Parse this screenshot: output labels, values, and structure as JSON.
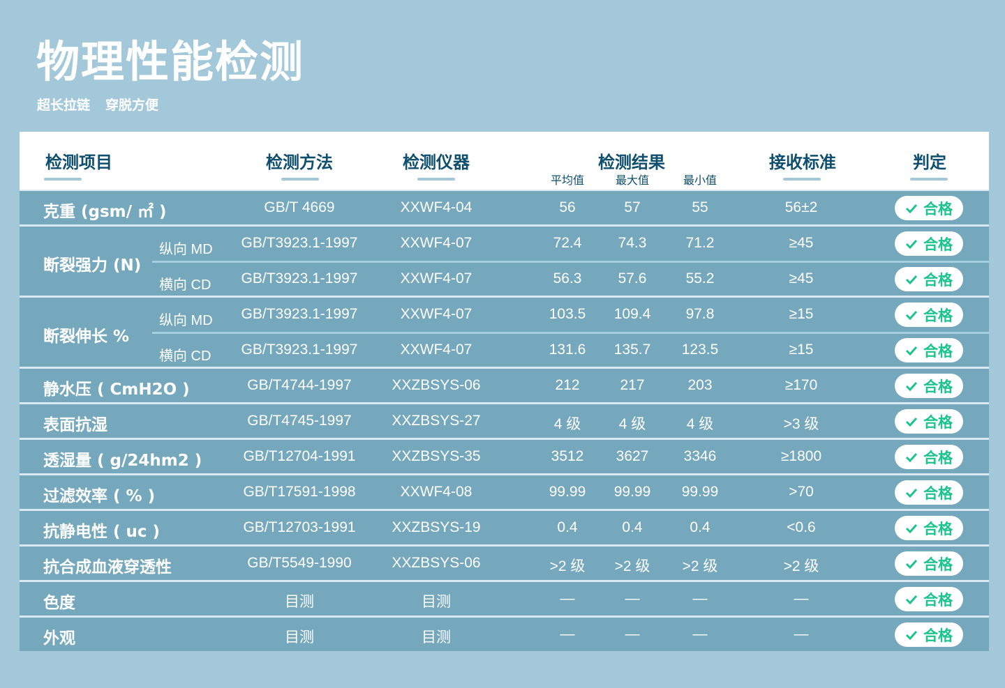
{
  "title": "物理性能检测",
  "subtitle": [
    "超长拉链",
    "穿脱方便"
  ],
  "header": {
    "item": "检测项目",
    "method": "检测方法",
    "instrument": "检测仪器",
    "result": "检测结果",
    "avg": "平均值",
    "max": "最大值",
    "min": "最小值",
    "standard": "接收标准",
    "verdict": "判定"
  },
  "colors": {
    "background": "#a3c8d9",
    "row": "#75a8bd",
    "header_text": "#0e4e6e",
    "pass": "#1bc48c"
  },
  "groups": [
    {
      "item": "克重 (gsm/ ㎡ )",
      "rows": [
        {
          "dir": "",
          "method": "GB/T 4669",
          "instrument": "XXWF4-04",
          "avg": "56",
          "max": "57",
          "min": "55",
          "standard": "56±2",
          "verdict": "合格"
        }
      ]
    },
    {
      "item": "断裂强力 (N)",
      "rows": [
        {
          "dir": "纵向 MD",
          "method": "GB/T3923.1-1997",
          "instrument": "XXWF4-07",
          "avg": "72.4",
          "max": "74.3",
          "min": "71.2",
          "standard": "≥45",
          "verdict": "合格"
        },
        {
          "dir": "横向 CD",
          "method": "GB/T3923.1-1997",
          "instrument": "XXWF4-07",
          "avg": "56.3",
          "max": "57.6",
          "min": "55.2",
          "standard": "≥45",
          "verdict": "合格"
        }
      ]
    },
    {
      "item": "断裂伸长 %",
      "rows": [
        {
          "dir": "纵向 MD",
          "method": "GB/T3923.1-1997",
          "instrument": "XXWF4-07",
          "avg": "103.5",
          "max": "109.4",
          "min": "97.8",
          "standard": "≥15",
          "verdict": "合格"
        },
        {
          "dir": "横向 CD",
          "method": "GB/T3923.1-1997",
          "instrument": "XXWF4-07",
          "avg": "131.6",
          "max": "135.7",
          "min": "123.5",
          "standard": "≥15",
          "verdict": "合格"
        }
      ]
    },
    {
      "item": "静水压 ( CmH2O )",
      "rows": [
        {
          "dir": "",
          "method": "GB/T4744-1997",
          "instrument": "XXZBSYS-06",
          "avg": "212",
          "max": "217",
          "min": "203",
          "standard": "≥170",
          "verdict": "合格"
        }
      ]
    },
    {
      "item": "表面抗湿",
      "rows": [
        {
          "dir": "",
          "method": "GB/T4745-1997",
          "instrument": "XXZBSYS-27",
          "avg": "4 级",
          "max": "4 级",
          "min": "4 级",
          "standard": ">3 级",
          "verdict": "合格"
        }
      ]
    },
    {
      "item": "透湿量 ( g/24hm2 )",
      "rows": [
        {
          "dir": "",
          "method": "GB/T12704-1991",
          "instrument": "XXZBSYS-35",
          "avg": "3512",
          "max": "3627",
          "min": "3346",
          "standard": "≥1800",
          "verdict": "合格"
        }
      ]
    },
    {
      "item": "过滤效率 ( % )",
      "rows": [
        {
          "dir": "",
          "method": "GB/T17591-1998",
          "instrument": "XXWF4-08",
          "avg": "99.99",
          "max": "99.99",
          "min": "99.99",
          "standard": ">70",
          "verdict": "合格"
        }
      ]
    },
    {
      "item": "抗静电性 ( uc )",
      "rows": [
        {
          "dir": "",
          "method": "GB/T12703-1991",
          "instrument": "XXZBSYS-19",
          "avg": "0.4",
          "max": "0.4",
          "min": "0.4",
          "standard": "<0.6",
          "verdict": "合格"
        }
      ]
    },
    {
      "item": "抗合成血液穿透性",
      "rows": [
        {
          "dir": "",
          "method": "GB/T5549-1990",
          "instrument": "XXZBSYS-06",
          "avg": ">2 级",
          "max": ">2 级",
          "min": ">2 级",
          "standard": ">2 级",
          "verdict": "合格"
        }
      ]
    },
    {
      "item": "色度",
      "rows": [
        {
          "dir": "",
          "method": "目测",
          "instrument": "目测",
          "avg": "—",
          "max": "—",
          "min": "—",
          "standard": "—",
          "verdict": "合格"
        }
      ]
    },
    {
      "item": "外观",
      "rows": [
        {
          "dir": "",
          "method": "目测",
          "instrument": "目测",
          "avg": "—",
          "max": "—",
          "min": "—",
          "standard": "—",
          "verdict": "合格"
        }
      ]
    }
  ]
}
